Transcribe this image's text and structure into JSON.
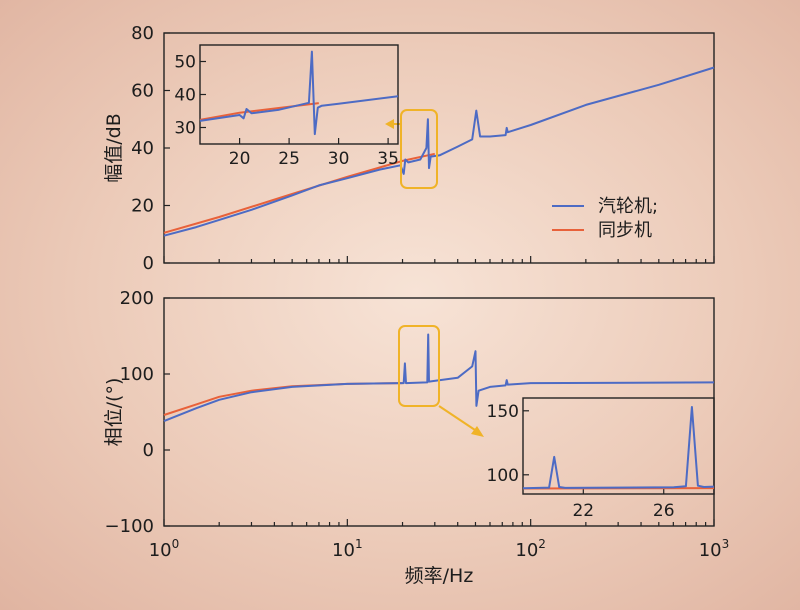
{
  "chart_data": [
    {
      "type": "line",
      "name": "magnitude",
      "ylabel": "幅值/dB",
      "xlabel": "",
      "xscale": "log",
      "xlim": [
        1,
        1000
      ],
      "ylim": [
        0,
        80
      ],
      "yticks": [
        0,
        20,
        40,
        60,
        80
      ],
      "legend_position": "right",
      "series": [
        {
          "name": "汽轮机;",
          "color": "#4d6bc4",
          "x": [
            1,
            1.5,
            2,
            3,
            5,
            7,
            10,
            15,
            19.5,
            20.3,
            20.7,
            21.5,
            25,
            27.0,
            27.5,
            27.9,
            28.5,
            32,
            40,
            48,
            50.5,
            53,
            60,
            73,
            74,
            75,
            100,
            200,
            500,
            1000
          ],
          "y": [
            9.5,
            12.5,
            15,
            18.5,
            23.5,
            27,
            29.5,
            32.5,
            34,
            31,
            36,
            35,
            36,
            40,
            50,
            33,
            37,
            37.5,
            40.5,
            43,
            53,
            44,
            44,
            44.5,
            47,
            45.5,
            48,
            55,
            62,
            68
          ]
        },
        {
          "name": "同步机",
          "color": "#e8613a",
          "x": [
            1,
            2,
            5,
            10,
            20,
            30
          ],
          "y": [
            10.5,
            16,
            24,
            30,
            35.5,
            38
          ]
        }
      ]
    },
    {
      "type": "line",
      "name": "magnitude-inset",
      "xlim": [
        16,
        36
      ],
      "ylim": [
        25,
        55
      ],
      "xticks": [
        20,
        25,
        30,
        35
      ],
      "yticks": [
        30,
        40,
        50
      ],
      "series": [
        {
          "name": "汽轮机;",
          "x": [
            16,
            20,
            20.4,
            20.7,
            21.2,
            24,
            27.0,
            27.3,
            27.6,
            27.9,
            28.3,
            30,
            36
          ],
          "y": [
            32,
            33.8,
            32.8,
            35.6,
            34.3,
            35.4,
            37.5,
            53,
            28,
            36,
            36.6,
            37.2,
            39.5
          ]
        },
        {
          "name": "同步机",
          "x": [
            16,
            20,
            25,
            28
          ],
          "y": [
            32.3,
            34.5,
            36.3,
            37.4
          ]
        }
      ]
    },
    {
      "type": "line",
      "name": "phase",
      "ylabel": "相位/(°)",
      "xlabel": "频率/Hz",
      "xscale": "log",
      "xlim": [
        1,
        1000
      ],
      "ylim": [
        -100,
        200
      ],
      "yticks": [
        -100,
        0,
        100,
        200
      ],
      "xticks": [
        "10^0",
        "10^1",
        "10^2",
        "10^3"
      ],
      "series": [
        {
          "name": "汽轮机;",
          "x": [
            1,
            1.5,
            2,
            3,
            5,
            10,
            20,
            20.3,
            20.6,
            20.9,
            27,
            27.3,
            27.6,
            27.9,
            40,
            48,
            50,
            50.6,
            52,
            60,
            73,
            74,
            75,
            100,
            1000
          ],
          "y": [
            38,
            55,
            66,
            76,
            83,
            87,
            88,
            88,
            114,
            88,
            89,
            89,
            152,
            90,
            95,
            110,
            130,
            58,
            78,
            83,
            85,
            92,
            86,
            88,
            89
          ]
        },
        {
          "name": "同步机",
          "x": [
            1,
            1.5,
            2,
            3,
            5,
            10,
            20
          ],
          "y": [
            46,
            60,
            70,
            78,
            84,
            87,
            88
          ]
        }
      ]
    },
    {
      "type": "line",
      "name": "phase-inset",
      "xlim": [
        19,
        28.5
      ],
      "ylim": [
        85,
        160
      ],
      "xticks": [
        22,
        26
      ],
      "yticks": [
        100,
        150
      ],
      "series": [
        {
          "name": "汽轮机;",
          "x": [
            19,
            20.3,
            20.55,
            20.8,
            21.1,
            26.5,
            27.1,
            27.4,
            27.7,
            28.0,
            28.5
          ],
          "y": [
            89.5,
            90,
            114,
            90.5,
            89.8,
            90.3,
            91,
            153,
            91.5,
            90.5,
            90.8
          ]
        },
        {
          "name": "同步机",
          "x": [
            19,
            28.5
          ],
          "y": [
            89.3,
            89.6
          ]
        }
      ]
    }
  ]
}
